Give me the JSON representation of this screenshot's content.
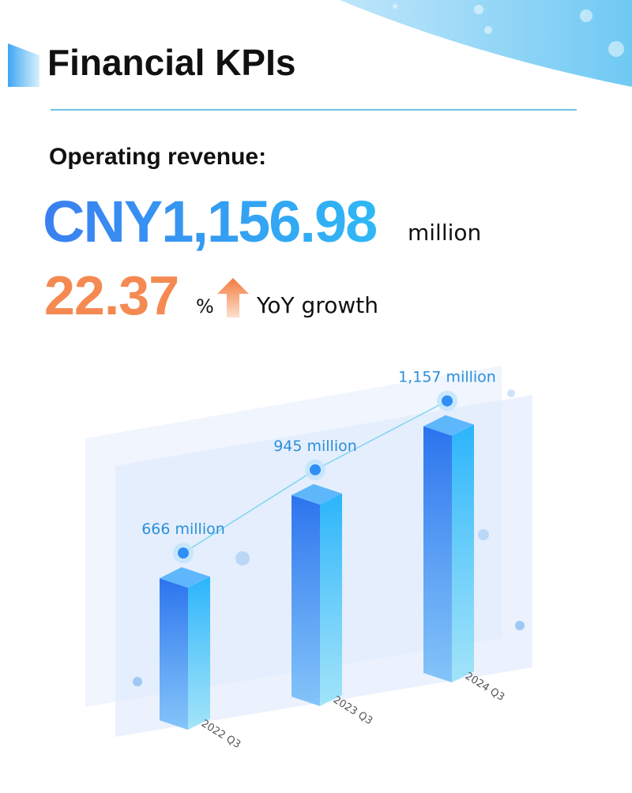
{
  "header": {
    "title": "Financial KPIs"
  },
  "kpi": {
    "label": "Operating revenue:",
    "value": "CNY1,156.98",
    "unit": "million",
    "growth": "22.37",
    "growth_unit": "%",
    "growth_label": "YoY growth"
  },
  "chart_data": {
    "type": "bar3d",
    "categories": [
      "2022 Q3",
      "2023 Q3",
      "2024 Q3"
    ],
    "values": [
      666,
      945,
      1157
    ],
    "value_labels": [
      "666 million",
      "945 million",
      "1,157 million"
    ],
    "color": "#2f8ff5"
  }
}
